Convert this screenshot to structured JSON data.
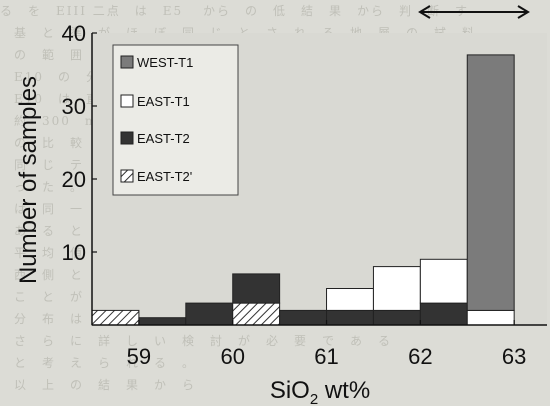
{
  "chart_data": {
    "type": "bar",
    "stacked": true,
    "x_ticks": [
      "59",
      "60",
      "61",
      "62",
      "63"
    ],
    "y_ticks": [
      "10",
      "20",
      "30",
      "40"
    ],
    "xlabel_main": "SiO",
    "xlabel_sub": "2",
    "xlabel_tail": " wt%",
    "ylabel": "Number of samples",
    "ylim": [
      0,
      40
    ],
    "bin_edges": [
      58.5,
      59.0,
      59.5,
      60.0,
      60.5,
      61.0,
      61.5,
      62.0,
      62.5,
      63.0
    ],
    "series": [
      {
        "name": "WEST-T1",
        "color": "#7b7b7b",
        "pattern": "solid",
        "values": [
          0,
          0,
          0,
          0,
          0,
          0,
          0,
          0,
          35
        ]
      },
      {
        "name": "EAST-T1",
        "color": "#ffffff",
        "pattern": "open",
        "values": [
          0,
          0,
          0,
          0,
          0,
          3,
          6,
          6,
          2
        ]
      },
      {
        "name": "EAST-T2",
        "color": "#333333",
        "pattern": "solid",
        "values": [
          0,
          1,
          3,
          4,
          2,
          2,
          2,
          3,
          0
        ]
      },
      {
        "name": "EAST-T2'",
        "color": "#ffffff",
        "pattern": "hatch",
        "values": [
          2,
          0,
          0,
          3,
          0,
          0,
          0,
          0,
          0
        ]
      }
    ],
    "legend_position": "top-left",
    "annotation": "double-headed arrow above 62.5–63 bin",
    "grid": false
  },
  "background_text": [
    "る　を　EIII 二点　は　E5 　から　の　低　結　果　から　判　断　す",
    "　基　と　準　が　ほ　ぼ　同　じ　と　さ　れ　る　地　層　の　試　料",
    "　の　範　囲　を　示　す　。",
    "　E10　の　分　析　値　は　EII　と　ほ　ぼ　同　じ　で　あ　る",
    "　E10　は　直　線　上　に　あ　る　と　考　え　ら　れ　る",
    "　約　300　m　の　範　囲　で　認　め　ら　れ　る",
    "　の　比　較　を　行　っ　た　。　そ　の　結　果",
    "　同　じ　テ　フ　ラ　で　あ　る　こ　と　が　分　か",
    "　っ　た　。　ま　た　、　こ　れ　ら　の　層　準",
    "　は　同　一　の　噴　火　に　よ　る　も　の　で",
    "　あ　る　と　判　断　さ　れ　る　。",
    "　平　均　値　を　比　較　す　る　と",
    "　西　側　と　東　側　で　わ　ず　か　に　異　な　る",
    "　こ　と　が　わ　か　る　。",
    "　分　布　は　図　に　示　す　と　お　り　で　あ　る",
    "　さ　ら　に　詳　し　い　検　討　が　必　要　で　あ　る",
    "　と　考　え　ら　れ　る　。",
    "　以　上　の　結　果　か　ら"
  ]
}
